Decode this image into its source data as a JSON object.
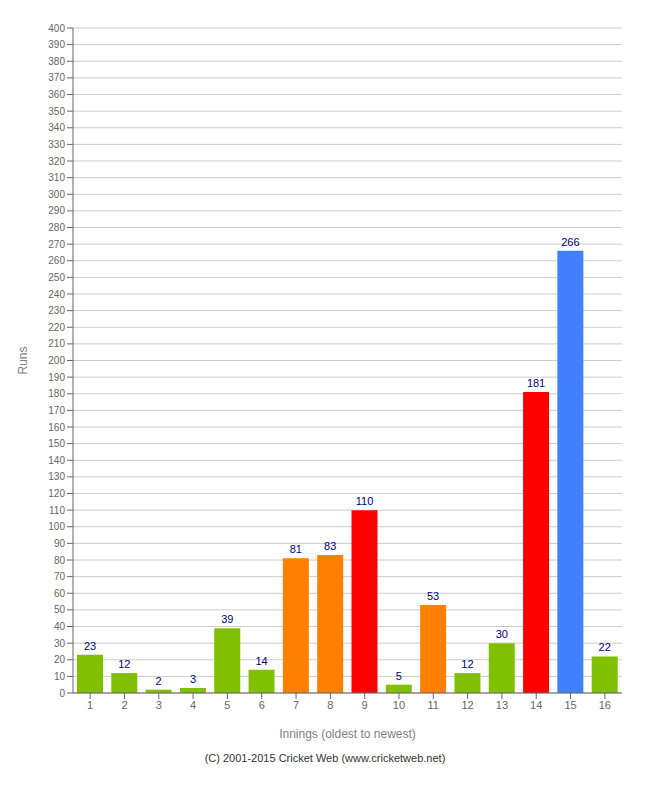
{
  "chart_data": {
    "type": "bar",
    "xlabel": "Innings (oldest to newest)",
    "ylabel": "Runs",
    "categories": [
      1,
      2,
      3,
      4,
      5,
      6,
      7,
      8,
      9,
      10,
      11,
      12,
      13,
      14,
      15,
      16
    ],
    "values": [
      23,
      12,
      2,
      3,
      39,
      14,
      81,
      83,
      110,
      5,
      53,
      12,
      30,
      181,
      266,
      22
    ],
    "colors": [
      "#80c000",
      "#80c000",
      "#80c000",
      "#80c000",
      "#80c000",
      "#80c000",
      "#ff8000",
      "#ff8000",
      "#ff0000",
      "#80c000",
      "#ff8000",
      "#80c000",
      "#80c000",
      "#ff0000",
      "#4080ff",
      "#80c000"
    ],
    "ylim": [
      0,
      400
    ],
    "yticks": [
      0,
      10,
      20,
      30,
      40,
      50,
      60,
      70,
      80,
      90,
      100,
      110,
      120,
      130,
      140,
      150,
      160,
      170,
      180,
      190,
      200,
      210,
      220,
      230,
      240,
      250,
      260,
      270,
      280,
      290,
      300,
      310,
      320,
      330,
      340,
      350,
      360,
      370,
      380,
      390,
      400
    ],
    "grid": true,
    "data_labels": true,
    "annotations": [
      "(C) 2001-2015 Cricket Web (www.cricketweb.net)"
    ]
  }
}
